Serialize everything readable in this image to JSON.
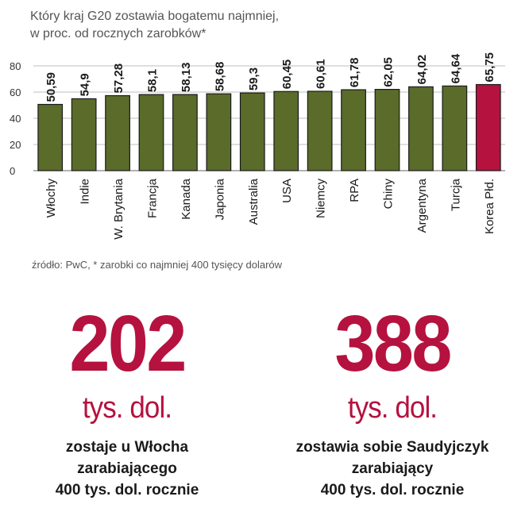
{
  "title_lines": [
    "Który kraj G20 zostawia bogatemu najmniej,",
    "w proc. od rocznych zarobków*"
  ],
  "source": "źródło: PwC, * zarobki co najmniej 400 tysięcy dolarów",
  "colors": {
    "bar": "#5a6b2a",
    "highlight": "#b5123f",
    "grid": "#bfbfbf"
  },
  "chart_data": {
    "type": "bar",
    "title": "Który kraj G20 zostawia bogatemu najmniej, w proc. od rocznych zarobków*",
    "categories": [
      "Włochy",
      "Indie",
      "W. Brytania",
      "Francja",
      "Kanada",
      "Japonia",
      "Australia",
      "USA",
      "Niemcy",
      "RPA",
      "Chiny",
      "Argentyna",
      "Turcja",
      "Korea Płd."
    ],
    "values": [
      50.59,
      54.9,
      57.28,
      58.1,
      58.13,
      58.68,
      59.3,
      60.45,
      60.61,
      61.78,
      62.05,
      64.02,
      64.64,
      65.75
    ],
    "labels": [
      "50,59",
      "54,9",
      "57,28",
      "58,1",
      "58,13",
      "58,68",
      "59,3",
      "60,45",
      "60,61",
      "61,78",
      "62,05",
      "64,02",
      "64,64",
      "65,75"
    ],
    "highlight_category": "Korea Płd.",
    "yticks": [
      0,
      20,
      40,
      60,
      80
    ],
    "ylim": [
      0,
      80
    ],
    "grid": true,
    "xlabel": "",
    "ylabel": ""
  },
  "stats": [
    {
      "value": "202",
      "unit": "tys. dol.",
      "desc": [
        "zostaje u Włocha",
        "zarabiającego",
        "400 tys. dol. rocznie"
      ]
    },
    {
      "value": "388",
      "unit": "tys. dol.",
      "desc": [
        "zostawia sobie Saudyjczyk",
        "zarabiający",
        "400 tys. dol. rocznie"
      ]
    }
  ]
}
